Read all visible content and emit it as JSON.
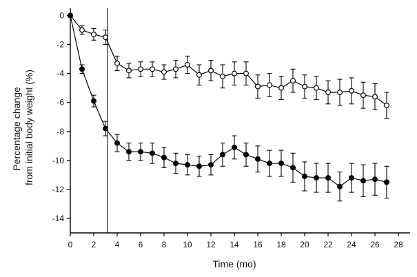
{
  "chart_data": {
    "type": "line",
    "xlabel": "Time (mo)",
    "ylabel": [
      "Percentage change",
      "from initial body weight (%)"
    ],
    "xlim": [
      0,
      29
    ],
    "ylim": [
      -15,
      0.5
    ],
    "xticks": [
      0,
      2,
      4,
      6,
      8,
      10,
      12,
      14,
      16,
      18,
      20,
      22,
      24,
      26,
      28
    ],
    "yticks": [
      0,
      -2,
      -4,
      -6,
      -8,
      -10,
      -12,
      -14
    ],
    "yticklabels": [
      "0",
      "-2",
      "-4",
      "-6",
      "-8",
      "-10",
      "-12",
      "-14"
    ],
    "vertical_reference_x": 3.2,
    "x": [
      0,
      1,
      2,
      3,
      4,
      5,
      6,
      7,
      8,
      9,
      10,
      11,
      12,
      13,
      14,
      15,
      16,
      17,
      18,
      19,
      20,
      21,
      22,
      23,
      24,
      25,
      26,
      27
    ],
    "series": [
      {
        "marker": "open-circle",
        "values": [
          0,
          -1.0,
          -1.3,
          -1.5,
          -3.3,
          -3.8,
          -3.7,
          -3.7,
          -3.9,
          -3.7,
          -3.4,
          -4.1,
          -3.8,
          -4.2,
          -4.0,
          -4.0,
          -4.9,
          -4.8,
          -5.0,
          -4.5,
          -4.9,
          -5.0,
          -5.3,
          -5.3,
          -5.2,
          -5.5,
          -5.6,
          -6.2
        ],
        "errors": [
          0.1,
          0.3,
          0.4,
          0.5,
          0.5,
          0.5,
          0.5,
          0.5,
          0.5,
          0.6,
          0.6,
          0.7,
          0.7,
          0.8,
          0.8,
          0.8,
          0.8,
          0.8,
          0.8,
          0.8,
          0.8,
          0.8,
          0.8,
          0.9,
          0.9,
          0.9,
          0.9,
          0.9
        ]
      },
      {
        "marker": "filled-circle",
        "values": [
          0,
          -3.7,
          -5.9,
          -7.8,
          -8.8,
          -9.4,
          -9.4,
          -9.5,
          -9.8,
          -10.2,
          -10.3,
          -10.4,
          -10.3,
          -9.6,
          -9.1,
          -9.6,
          -9.9,
          -10.2,
          -10.2,
          -10.5,
          -11.1,
          -11.2,
          -11.2,
          -11.8,
          -11.2,
          -11.4,
          -11.3,
          -11.5
        ],
        "errors": [
          0.1,
          0.3,
          0.4,
          0.5,
          0.6,
          0.6,
          0.6,
          0.7,
          0.7,
          0.7,
          0.7,
          0.7,
          0.7,
          0.8,
          0.8,
          0.8,
          0.9,
          0.9,
          0.9,
          1.0,
          1.0,
          1.0,
          1.0,
          1.0,
          1.0,
          1.1,
          1.1,
          1.1
        ]
      }
    ]
  }
}
